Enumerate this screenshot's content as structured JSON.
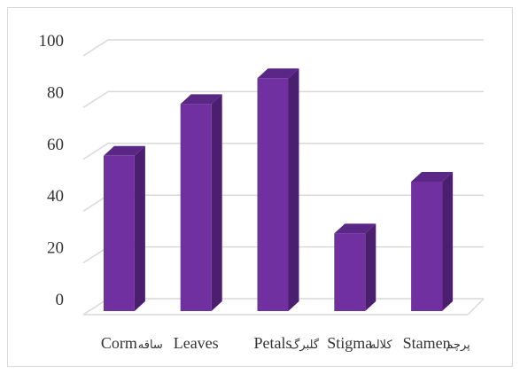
{
  "chart_data": {
    "type": "bar",
    "style": "3d-column",
    "categories": [
      "Corm",
      "Leaves",
      "Petals",
      "Stigma",
      "Stamen"
    ],
    "category_sublabels": [
      "ساقه",
      "",
      "گلبرگ",
      "کلاله",
      "پرچم"
    ],
    "values": [
      60,
      80,
      90,
      30,
      50
    ],
    "title": "",
    "xlabel": "",
    "ylabel": "",
    "ylim": [
      0,
      100
    ],
    "yticks": [
      0,
      20,
      40,
      60,
      80,
      100
    ],
    "grid": true,
    "legend": "none",
    "bar_color": "#7030a0"
  }
}
